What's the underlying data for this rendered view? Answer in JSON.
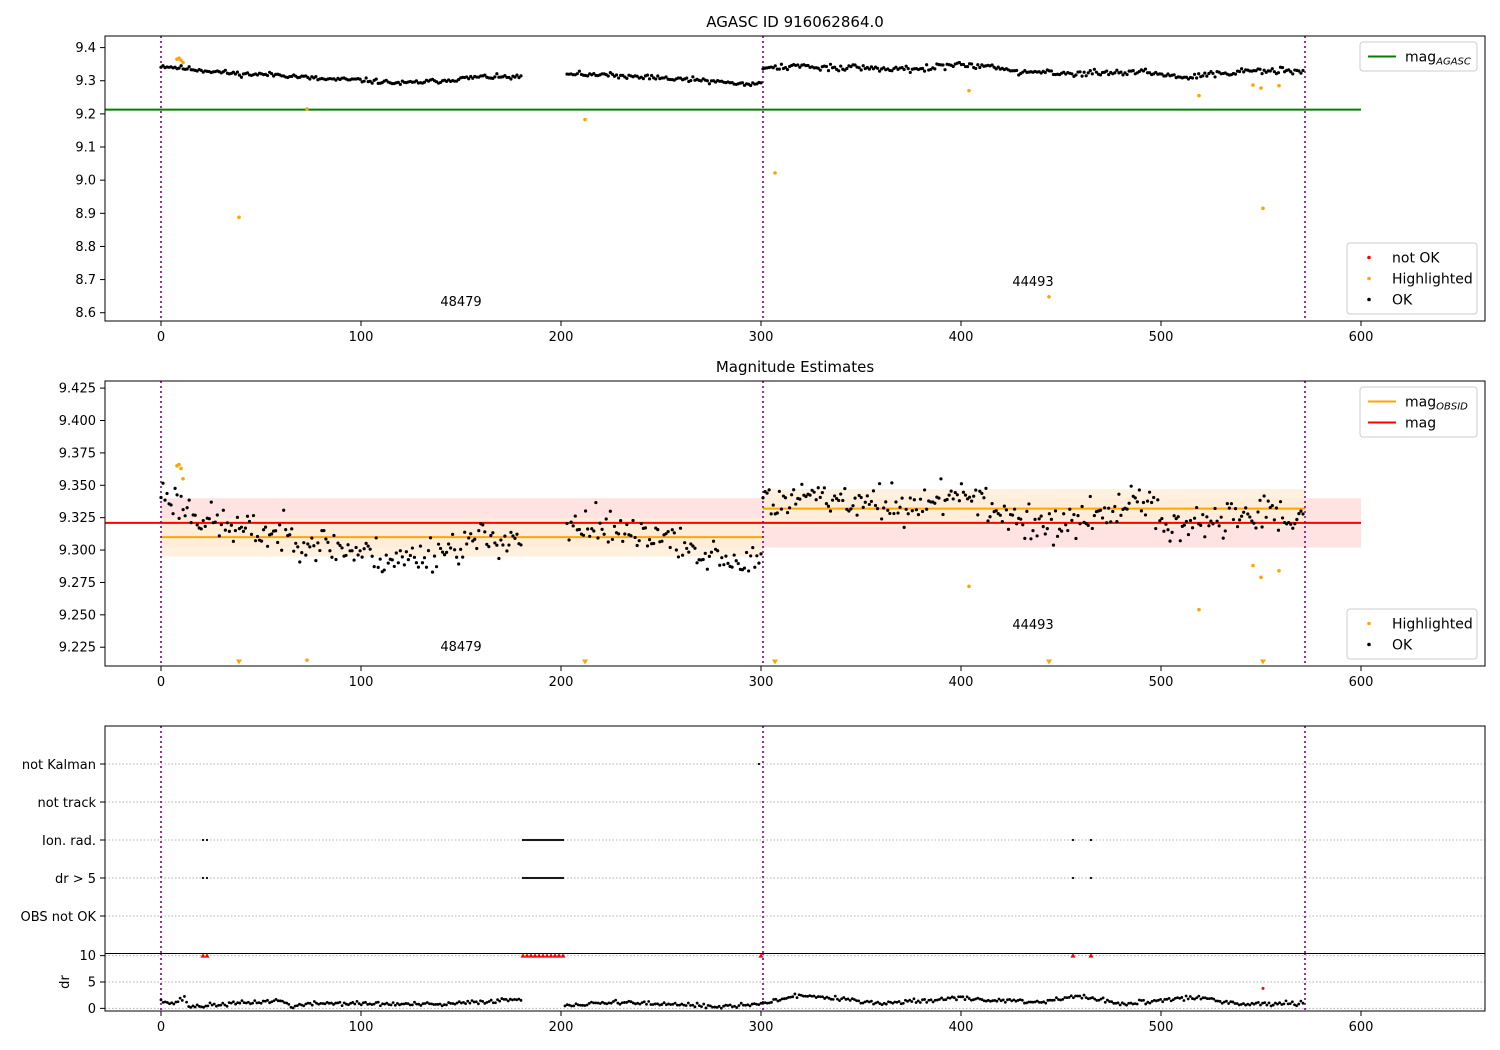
{
  "figure": {
    "panel1_title": "AGASC ID 916062864.0",
    "panel2_title": "Magnitude Estimates"
  },
  "chart_data": [
    {
      "type": "scatter",
      "title": "AGASC ID 916062864.0",
      "xlim": [
        -28,
        662
      ],
      "ylim": [
        8.575,
        9.435
      ],
      "x_ticks": [
        0,
        100,
        200,
        300,
        400,
        500,
        600
      ],
      "y_ticks": [
        8.6,
        8.7,
        8.8,
        8.9,
        9.0,
        9.1,
        9.2,
        9.3,
        9.4
      ],
      "y_tick_labels": [
        "8.6",
        "8.7",
        "8.8",
        "8.9",
        "9.0",
        "9.1",
        "9.2",
        "9.3",
        "9.4"
      ],
      "observation_boundaries": [
        0,
        301,
        572
      ],
      "observation_labels": [
        {
          "text": "48479",
          "x": 150,
          "y": 8.62
        },
        {
          "text": "44493",
          "x": 436,
          "y": 8.68
        }
      ],
      "reference_lines": [
        {
          "name": "mag_AGASC",
          "y": 9.213,
          "x_range": [
            -28,
            600
          ],
          "color": "#008000"
        }
      ],
      "ok_segments": [
        {
          "x_start": 0,
          "x_end": 180,
          "anchors": [
            [
              0,
              9.345
            ],
            [
              20,
              9.332
            ],
            [
              40,
              9.32
            ],
            [
              60,
              9.318
            ],
            [
              80,
              9.305
            ],
            [
              100,
              9.302
            ],
            [
              120,
              9.292
            ],
            [
              140,
              9.3
            ],
            [
              160,
              9.312
            ],
            [
              180,
              9.31
            ]
          ],
          "noise": 0.006,
          "n": 180
        },
        {
          "x_start": 203,
          "x_end": 300,
          "anchors": [
            [
              203,
              9.322
            ],
            [
              230,
              9.315
            ],
            [
              250,
              9.308
            ],
            [
              270,
              9.302
            ],
            [
              290,
              9.29
            ],
            [
              300,
              9.29
            ]
          ],
          "noise": 0.006,
          "n": 95
        },
        {
          "x_start": 301,
          "x_end": 571,
          "anchors": [
            [
              301,
              9.335
            ],
            [
              320,
              9.345
            ],
            [
              350,
              9.338
            ],
            [
              380,
              9.335
            ],
            [
              400,
              9.352
            ],
            [
              430,
              9.325
            ],
            [
              460,
              9.322
            ],
            [
              490,
              9.33
            ],
            [
              510,
              9.31
            ],
            [
              540,
              9.33
            ],
            [
              571,
              9.33
            ]
          ],
          "noise": 0.008,
          "n": 265
        }
      ],
      "highlighted_points": [
        [
          8,
          9.365
        ],
        [
          9,
          9.368
        ],
        [
          10,
          9.362
        ],
        [
          11,
          9.355
        ],
        [
          39,
          8.888
        ],
        [
          73,
          9.215
        ],
        [
          212,
          9.183
        ],
        [
          307,
          9.022
        ],
        [
          404,
          9.27
        ],
        [
          444,
          8.648
        ],
        [
          519,
          9.255
        ],
        [
          546,
          9.287
        ],
        [
          550,
          9.278
        ],
        [
          551,
          8.915
        ],
        [
          559,
          9.285
        ]
      ],
      "not_ok_points": [],
      "legends": [
        {
          "position": "upper right",
          "entries": [
            {
              "label": "mag",
              "subscript": "AGASC",
              "color": "#008000",
              "kind": "line"
            }
          ]
        },
        {
          "position": "lower right",
          "entries": [
            {
              "label": "not OK",
              "color": "#ff0000",
              "kind": "point"
            },
            {
              "label": "Highlighted",
              "color": "#ffa500",
              "kind": "point"
            },
            {
              "label": "OK",
              "color": "#000000",
              "kind": "point"
            }
          ]
        }
      ]
    },
    {
      "type": "scatter",
      "title": "Magnitude Estimates",
      "xlim": [
        -28,
        662
      ],
      "ylim": [
        9.2105,
        9.4305
      ],
      "x_ticks": [
        0,
        100,
        200,
        300,
        400,
        500,
        600
      ],
      "y_ticks": [
        9.225,
        9.25,
        9.275,
        9.3,
        9.325,
        9.35,
        9.375,
        9.4,
        9.425
      ],
      "y_tick_labels": [
        "9.225",
        "9.250",
        "9.275",
        "9.300",
        "9.325",
        "9.350",
        "9.375",
        "9.400",
        "9.425"
      ],
      "observation_boundaries": [
        0,
        301,
        572
      ],
      "observation_labels": [
        {
          "text": "48479",
          "x": 150,
          "y": 9.222
        },
        {
          "text": "44493",
          "x": 436,
          "y": 9.239
        }
      ],
      "bands": [
        {
          "name": "mag",
          "x_range": [
            0,
            600
          ],
          "y_range": [
            9.302,
            9.34
          ],
          "color": "#ffdddd"
        },
        {
          "name": "mag_OBSID 48479",
          "x_range": [
            0,
            301
          ],
          "y_range": [
            9.295,
            9.325
          ],
          "color": "#ffeed8"
        },
        {
          "name": "mag_OBSID 44493",
          "x_range": [
            301,
            572
          ],
          "y_range": [
            9.318,
            9.347
          ],
          "color": "#ffeed8"
        }
      ],
      "reference_lines": [
        {
          "name": "mag",
          "y": 9.321,
          "x_range": [
            -28,
            600
          ],
          "color": "#ff0000"
        },
        {
          "name": "mag_OBSID 48479",
          "y": 9.31,
          "x_range": [
            0,
            301
          ],
          "color": "#ffa500"
        },
        {
          "name": "mag_OBSID 44493",
          "y": 9.332,
          "x_range": [
            301,
            572
          ],
          "color": "#ffa500"
        }
      ],
      "ok_segments": [
        {
          "x_start": 0,
          "x_end": 180,
          "anchors": [
            [
              0,
              9.345
            ],
            [
              20,
              9.325
            ],
            [
              40,
              9.315
            ],
            [
              60,
              9.312
            ],
            [
              80,
              9.305
            ],
            [
              100,
              9.298
            ],
            [
              120,
              9.292
            ],
            [
              140,
              9.3
            ],
            [
              160,
              9.308
            ],
            [
              180,
              9.31
            ]
          ],
          "noise": 0.012,
          "n": 180
        },
        {
          "x_start": 203,
          "x_end": 300,
          "anchors": [
            [
              203,
              9.32
            ],
            [
              230,
              9.318
            ],
            [
              250,
              9.305
            ],
            [
              270,
              9.302
            ],
            [
              290,
              9.288
            ],
            [
              300,
              9.29
            ]
          ],
          "noise": 0.012,
          "n": 95
        },
        {
          "x_start": 301,
          "x_end": 571,
          "anchors": [
            [
              301,
              9.335
            ],
            [
              320,
              9.345
            ],
            [
              350,
              9.335
            ],
            [
              380,
              9.335
            ],
            [
              400,
              9.345
            ],
            [
              430,
              9.318
            ],
            [
              460,
              9.322
            ],
            [
              490,
              9.34
            ],
            [
              510,
              9.315
            ],
            [
              540,
              9.33
            ],
            [
              571,
              9.33
            ]
          ],
          "noise": 0.012,
          "n": 265
        }
      ],
      "highlighted_points": [
        [
          8,
          9.365
        ],
        [
          9,
          9.366
        ],
        [
          10,
          9.363
        ],
        [
          11,
          9.355
        ],
        [
          73,
          9.215
        ],
        [
          404,
          9.272
        ],
        [
          519,
          9.254
        ],
        [
          546,
          9.288
        ],
        [
          550,
          9.279
        ],
        [
          559,
          9.284
        ]
      ],
      "out_of_range_markers": [
        39,
        212,
        307,
        444,
        551
      ],
      "legends": [
        {
          "position": "upper right",
          "entries": [
            {
              "label": "mag",
              "subscript": "OBSID",
              "color": "#ffa500",
              "kind": "line"
            },
            {
              "label": "mag",
              "subscript": "",
              "color": "#ff0000",
              "kind": "line"
            }
          ]
        },
        {
          "position": "lower right",
          "entries": [
            {
              "label": "Highlighted",
              "color": "#ffa500",
              "kind": "point"
            },
            {
              "label": "OK",
              "color": "#000000",
              "kind": "point"
            }
          ]
        }
      ]
    },
    {
      "type": "scatter",
      "title": "",
      "xlim": [
        -28,
        662
      ],
      "x_ticks": [
        0,
        100,
        200,
        300,
        400,
        500,
        600
      ],
      "observation_boundaries": [
        0,
        301,
        572
      ],
      "flag_labels": [
        "not Kalman",
        "not track",
        "Ion. rad.",
        "dr > 5",
        "OBS not OK"
      ],
      "flags": {
        "not Kalman": {
          "x": [
            299
          ]
        },
        "not track": {
          "x": []
        },
        "Ion. rad.": {
          "x": [
            21,
            23
          ],
          "x_ranges": [
            [
              181,
              201
            ]
          ],
          "x_extra": [
            456,
            465
          ]
        },
        "dr > 5": {
          "x": [
            21,
            23
          ],
          "x_ranges": [
            [
              181,
              201
            ]
          ],
          "x_extra": [
            456,
            465
          ]
        },
        "OBS not OK": {
          "x": []
        }
      }
    },
    {
      "type": "scatter",
      "ylabel": "dr",
      "xlim": [
        -28,
        662
      ],
      "ylim": [
        -0.5,
        10.5
      ],
      "x_ticks": [
        0,
        100,
        200,
        300,
        400,
        500,
        600
      ],
      "y_ticks": [
        0,
        5,
        10
      ],
      "observation_boundaries": [
        0,
        301,
        572
      ],
      "dr_segments": [
        {
          "x_start": 0,
          "x_end": 180,
          "anchors": [
            [
              0,
              1.8
            ],
            [
              5,
              0.8
            ],
            [
              12,
              2.0
            ],
            [
              14,
              0.3
            ],
            [
              40,
              1.0
            ],
            [
              60,
              1.5
            ],
            [
              65,
              0.4
            ],
            [
              80,
              1.0
            ],
            [
              100,
              0.9
            ],
            [
              140,
              0.7
            ],
            [
              180,
              1.8
            ]
          ],
          "noise": 0.35,
          "n": 170
        },
        {
          "x_start": 202,
          "x_end": 300,
          "anchors": [
            [
              202,
              0.5
            ],
            [
              230,
              1.2
            ],
            [
              260,
              0.6
            ],
            [
              280,
              0.3
            ],
            [
              300,
              0.8
            ]
          ],
          "noise": 0.35,
          "n": 90
        },
        {
          "x_start": 301,
          "x_end": 571,
          "anchors": [
            [
              301,
              1.0
            ],
            [
              320,
              2.5
            ],
            [
              340,
              1.8
            ],
            [
              360,
              0.9
            ],
            [
              400,
              2.0
            ],
            [
              420,
              1.5
            ],
            [
              440,
              1.2
            ],
            [
              460,
              2.4
            ],
            [
              480,
              0.8
            ],
            [
              500,
              1.6
            ],
            [
              520,
              2.0
            ],
            [
              540,
              0.8
            ],
            [
              571,
              1.0
            ]
          ],
          "noise": 0.35,
          "n": 255
        }
      ],
      "capped_points_x": [
        21,
        23,
        181,
        183,
        185,
        187,
        189,
        191,
        193,
        195,
        197,
        199,
        201,
        300,
        456,
        465
      ],
      "capped_value": 10,
      "extra_red_points": [
        [
          551,
          3.8
        ]
      ]
    }
  ]
}
